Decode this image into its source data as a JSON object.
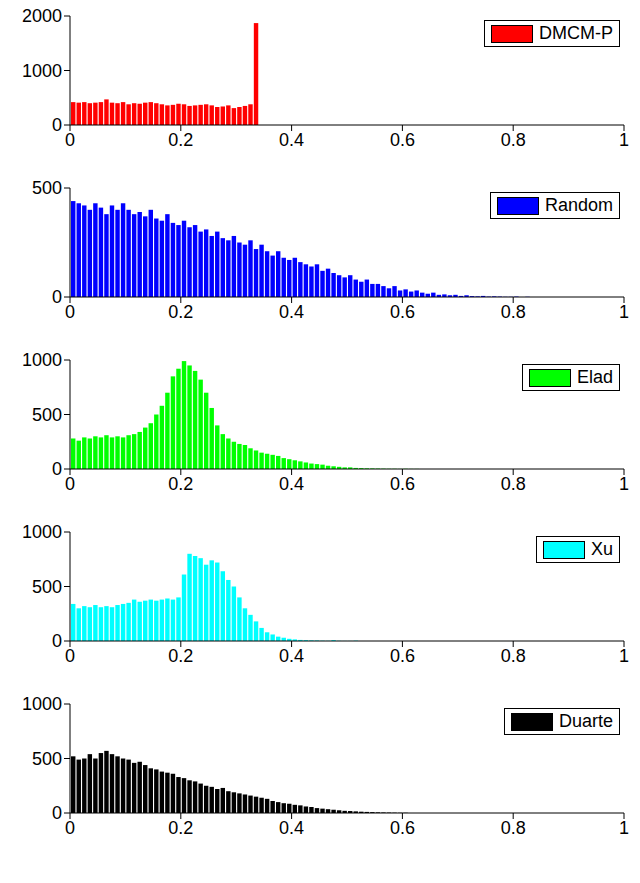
{
  "chart_data": [
    {
      "type": "histogram",
      "bins": [
        0,
        0.01,
        0.02,
        0.03,
        0.04,
        0.05,
        0.06,
        0.07,
        0.08,
        0.09,
        0.1,
        0.11,
        0.12,
        0.13,
        0.14,
        0.15,
        0.16,
        0.17,
        0.18,
        0.19,
        0.2,
        0.21,
        0.22,
        0.23,
        0.24,
        0.25,
        0.26,
        0.27,
        0.28,
        0.29,
        0.3,
        0.31,
        0.32,
        0.33,
        0.34,
        0.35,
        0.36,
        0.37,
        0.38,
        0.39,
        0.4,
        0.41,
        0.42,
        0.43,
        0.44,
        0.45,
        0.46,
        0.47,
        0.48,
        0.49,
        0.5,
        0.51,
        0.52,
        0.53,
        0.54,
        0.55,
        0.56,
        0.57,
        0.58,
        0.59,
        0.6,
        0.61,
        0.62,
        0.63,
        0.64,
        0.65,
        0.66,
        0.67,
        0.68,
        0.69,
        0.7,
        0.71,
        0.72,
        0.73,
        0.74,
        0.75,
        0.76,
        0.77,
        0.78,
        0.79,
        0.8,
        0.81,
        0.82,
        0.83,
        0.84,
        0.85,
        0.86,
        0.87,
        0.88,
        0.89,
        0.9,
        0.91,
        0.92,
        0.93,
        0.94,
        0.95,
        0.96,
        0.97,
        0.98,
        0.99,
        1
      ],
      "series": [
        {
          "name": "DMCM-P",
          "color": "#ff0000",
          "values": [
            420,
            410,
            420,
            400,
            410,
            420,
            470,
            410,
            400,
            420,
            380,
            400,
            390,
            410,
            420,
            400,
            380,
            360,
            370,
            390,
            380,
            350,
            360,
            370,
            380,
            360,
            330,
            340,
            360,
            310,
            330,
            350,
            380,
            1870,
            0,
            0,
            0,
            0,
            0,
            0,
            0,
            0,
            0,
            0,
            0,
            0,
            0,
            0,
            0,
            0,
            0,
            0,
            0,
            0,
            0,
            0,
            0,
            0,
            0,
            0,
            0,
            0,
            0,
            0,
            0,
            0,
            0,
            0,
            0,
            0,
            0,
            0,
            0,
            0,
            0,
            0,
            0,
            0,
            0,
            0,
            0,
            0,
            0,
            0,
            0,
            0,
            0,
            0,
            0,
            0,
            0,
            0,
            0,
            0,
            0,
            0,
            0,
            0,
            0,
            0
          ]
        }
      ],
      "xlim": [
        0,
        1
      ],
      "xticks": [
        0,
        0.2,
        0.4,
        0.6,
        0.8,
        1
      ],
      "ylim": [
        0,
        2000
      ],
      "yticks": [
        0,
        1000,
        2000
      ],
      "legend": "northeast"
    },
    {
      "type": "histogram",
      "bins": [
        0,
        0.01,
        0.02,
        0.03,
        0.04,
        0.05,
        0.06,
        0.07,
        0.08,
        0.09,
        0.1,
        0.11,
        0.12,
        0.13,
        0.14,
        0.15,
        0.16,
        0.17,
        0.18,
        0.19,
        0.2,
        0.21,
        0.22,
        0.23,
        0.24,
        0.25,
        0.26,
        0.27,
        0.28,
        0.29,
        0.3,
        0.31,
        0.32,
        0.33,
        0.34,
        0.35,
        0.36,
        0.37,
        0.38,
        0.39,
        0.4,
        0.41,
        0.42,
        0.43,
        0.44,
        0.45,
        0.46,
        0.47,
        0.48,
        0.49,
        0.5,
        0.51,
        0.52,
        0.53,
        0.54,
        0.55,
        0.56,
        0.57,
        0.58,
        0.59,
        0.6,
        0.61,
        0.62,
        0.63,
        0.64,
        0.65,
        0.66,
        0.67,
        0.68,
        0.69,
        0.7,
        0.71,
        0.72,
        0.73,
        0.74,
        0.75,
        0.76,
        0.77,
        0.78,
        0.79,
        0.8,
        0.81,
        0.82,
        0.83,
        0.84,
        0.85,
        0.86,
        0.87,
        0.88,
        0.89,
        0.9,
        0.91,
        0.92,
        0.93,
        0.94,
        0.95,
        0.96,
        0.97,
        0.98,
        0.99,
        1
      ],
      "series": [
        {
          "name": "Random",
          "color": "#0000ff",
          "values": [
            440,
            430,
            420,
            400,
            430,
            410,
            380,
            420,
            400,
            430,
            400,
            380,
            390,
            370,
            400,
            360,
            350,
            380,
            340,
            330,
            350,
            320,
            330,
            300,
            310,
            280,
            300,
            270,
            260,
            280,
            250,
            240,
            260,
            220,
            240,
            210,
            190,
            210,
            180,
            170,
            180,
            160,
            150,
            140,
            150,
            120,
            130,
            110,
            100,
            90,
            100,
            80,
            70,
            80,
            60,
            60,
            50,
            40,
            50,
            30,
            35,
            25,
            30,
            20,
            15,
            20,
            10,
            12,
            8,
            10,
            5,
            8,
            4,
            3,
            5,
            2,
            3,
            2,
            1,
            1,
            2,
            0,
            1,
            0,
            0,
            0,
            0,
            0,
            0,
            0,
            0,
            0,
            0,
            0,
            0,
            0,
            0,
            0,
            0,
            0
          ]
        }
      ],
      "xlim": [
        0,
        1
      ],
      "xticks": [
        0,
        0.2,
        0.4,
        0.6,
        0.8,
        1
      ],
      "ylim": [
        0,
        500
      ],
      "yticks": [
        0,
        500
      ],
      "legend": "northeast"
    },
    {
      "type": "histogram",
      "bins": [
        0,
        0.01,
        0.02,
        0.03,
        0.04,
        0.05,
        0.06,
        0.07,
        0.08,
        0.09,
        0.1,
        0.11,
        0.12,
        0.13,
        0.14,
        0.15,
        0.16,
        0.17,
        0.18,
        0.19,
        0.2,
        0.21,
        0.22,
        0.23,
        0.24,
        0.25,
        0.26,
        0.27,
        0.28,
        0.29,
        0.3,
        0.31,
        0.32,
        0.33,
        0.34,
        0.35,
        0.36,
        0.37,
        0.38,
        0.39,
        0.4,
        0.41,
        0.42,
        0.43,
        0.44,
        0.45,
        0.46,
        0.47,
        0.48,
        0.49,
        0.5,
        0.51,
        0.52,
        0.53,
        0.54,
        0.55,
        0.56,
        0.57,
        0.58,
        0.59,
        0.6,
        0.61,
        0.62,
        0.63,
        0.64,
        0.65,
        0.66,
        0.67,
        0.68,
        0.69,
        0.7,
        0.71,
        0.72,
        0.73,
        0.74,
        0.75,
        0.76,
        0.77,
        0.78,
        0.79,
        0.8,
        0.81,
        0.82,
        0.83,
        0.84,
        0.85,
        0.86,
        0.87,
        0.88,
        0.89,
        0.9,
        0.91,
        0.92,
        0.93,
        0.94,
        0.95,
        0.96,
        0.97,
        0.98,
        0.99,
        1
      ],
      "series": [
        {
          "name": "Elad",
          "color": "#00ff00",
          "values": [
            280,
            260,
            290,
            280,
            300,
            290,
            310,
            290,
            300,
            290,
            310,
            320,
            340,
            380,
            420,
            500,
            580,
            700,
            850,
            920,
            990,
            950,
            900,
            820,
            700,
            560,
            400,
            320,
            280,
            250,
            230,
            220,
            190,
            170,
            150,
            140,
            130,
            120,
            100,
            90,
            80,
            70,
            60,
            50,
            45,
            40,
            30,
            25,
            20,
            15,
            15,
            10,
            8,
            6,
            5,
            4,
            3,
            2,
            2,
            1,
            2,
            1,
            1,
            0,
            0,
            0,
            0,
            0,
            0,
            0,
            0,
            0,
            0,
            0,
            0,
            0,
            0,
            0,
            0,
            0,
            0,
            0,
            0,
            0,
            0,
            0,
            0,
            0,
            0,
            0,
            0,
            0,
            0,
            0,
            0,
            0,
            0,
            0,
            0,
            0
          ]
        }
      ],
      "xlim": [
        0,
        1
      ],
      "xticks": [
        0,
        0.2,
        0.4,
        0.6,
        0.8,
        1
      ],
      "ylim": [
        0,
        1000
      ],
      "yticks": [
        0,
        500,
        1000
      ],
      "legend": "northeast"
    },
    {
      "type": "histogram",
      "bins": [
        0,
        0.01,
        0.02,
        0.03,
        0.04,
        0.05,
        0.06,
        0.07,
        0.08,
        0.09,
        0.1,
        0.11,
        0.12,
        0.13,
        0.14,
        0.15,
        0.16,
        0.17,
        0.18,
        0.19,
        0.2,
        0.21,
        0.22,
        0.23,
        0.24,
        0.25,
        0.26,
        0.27,
        0.28,
        0.29,
        0.3,
        0.31,
        0.32,
        0.33,
        0.34,
        0.35,
        0.36,
        0.37,
        0.38,
        0.39,
        0.4,
        0.41,
        0.42,
        0.43,
        0.44,
        0.45,
        0.46,
        0.47,
        0.48,
        0.49,
        0.5,
        0.51,
        0.52,
        0.53,
        0.54,
        0.55,
        0.56,
        0.57,
        0.58,
        0.59,
        0.6,
        0.61,
        0.62,
        0.63,
        0.64,
        0.65,
        0.66,
        0.67,
        0.68,
        0.69,
        0.7,
        0.71,
        0.72,
        0.73,
        0.74,
        0.75,
        0.76,
        0.77,
        0.78,
        0.79,
        0.8,
        0.81,
        0.82,
        0.83,
        0.84,
        0.85,
        0.86,
        0.87,
        0.88,
        0.89,
        0.9,
        0.91,
        0.92,
        0.93,
        0.94,
        0.95,
        0.96,
        0.97,
        0.98,
        0.99,
        1
      ],
      "series": [
        {
          "name": "Xu",
          "color": "#00ffff",
          "values": [
            340,
            300,
            320,
            310,
            330,
            310,
            320,
            310,
            330,
            340,
            350,
            380,
            360,
            370,
            380,
            370,
            380,
            390,
            380,
            400,
            610,
            800,
            780,
            760,
            700,
            740,
            720,
            640,
            560,
            500,
            400,
            300,
            240,
            180,
            120,
            80,
            60,
            40,
            30,
            20,
            15,
            10,
            8,
            6,
            5,
            3,
            2,
            8,
            2,
            1,
            1,
            3,
            0,
            0,
            0,
            0,
            0,
            0,
            0,
            0,
            0,
            0,
            0,
            0,
            0,
            0,
            0,
            0,
            0,
            0,
            0,
            0,
            0,
            0,
            0,
            0,
            0,
            0,
            0,
            0,
            0,
            0,
            0,
            0,
            0,
            0,
            0,
            0,
            0,
            0,
            0,
            0,
            0,
            0,
            0,
            0,
            0,
            0,
            0,
            0
          ]
        }
      ],
      "xlim": [
        0,
        1
      ],
      "xticks": [
        0,
        0.2,
        0.4,
        0.6,
        0.8,
        1
      ],
      "ylim": [
        0,
        1000
      ],
      "yticks": [
        0,
        500,
        1000
      ],
      "legend": "northeast"
    },
    {
      "type": "histogram",
      "bins": [
        0,
        0.01,
        0.02,
        0.03,
        0.04,
        0.05,
        0.06,
        0.07,
        0.08,
        0.09,
        0.1,
        0.11,
        0.12,
        0.13,
        0.14,
        0.15,
        0.16,
        0.17,
        0.18,
        0.19,
        0.2,
        0.21,
        0.22,
        0.23,
        0.24,
        0.25,
        0.26,
        0.27,
        0.28,
        0.29,
        0.3,
        0.31,
        0.32,
        0.33,
        0.34,
        0.35,
        0.36,
        0.37,
        0.38,
        0.39,
        0.4,
        0.41,
        0.42,
        0.43,
        0.44,
        0.45,
        0.46,
        0.47,
        0.48,
        0.49,
        0.5,
        0.51,
        0.52,
        0.53,
        0.54,
        0.55,
        0.56,
        0.57,
        0.58,
        0.59,
        0.6,
        0.61,
        0.62,
        0.63,
        0.64,
        0.65,
        0.66,
        0.67,
        0.68,
        0.69,
        0.7,
        0.71,
        0.72,
        0.73,
        0.74,
        0.75,
        0.76,
        0.77,
        0.78,
        0.79,
        0.8,
        0.81,
        0.82,
        0.83,
        0.84,
        0.85,
        0.86,
        0.87,
        0.88,
        0.89,
        0.9,
        0.91,
        0.92,
        0.93,
        0.94,
        0.95,
        0.96,
        0.97,
        0.98,
        0.99,
        1
      ],
      "series": [
        {
          "name": "Duarte",
          "color": "#000000",
          "values": [
            520,
            490,
            500,
            540,
            500,
            550,
            570,
            540,
            520,
            500,
            490,
            460,
            470,
            440,
            410,
            400,
            380,
            370,
            360,
            330,
            320,
            300,
            290,
            270,
            250,
            240,
            220,
            230,
            200,
            190,
            180,
            170,
            160,
            150,
            140,
            130,
            110,
            100,
            90,
            85,
            75,
            70,
            60,
            55,
            45,
            40,
            35,
            30,
            25,
            20,
            18,
            15,
            12,
            10,
            8,
            6,
            5,
            4,
            3,
            2,
            2,
            0,
            0,
            0,
            0,
            0,
            0,
            0,
            0,
            0,
            0,
            0,
            0,
            0,
            0,
            0,
            0,
            0,
            0,
            0,
            0,
            0,
            0,
            0,
            0,
            0,
            0,
            0,
            0,
            0,
            0,
            0,
            0,
            0,
            0,
            0,
            0,
            0,
            0,
            0
          ]
        }
      ],
      "xlim": [
        0,
        1
      ],
      "xticks": [
        0,
        0.2,
        0.4,
        0.6,
        0.8,
        1
      ],
      "ylim": [
        0,
        1000
      ],
      "yticks": [
        0,
        500,
        1000
      ],
      "legend": "northeast"
    }
  ]
}
